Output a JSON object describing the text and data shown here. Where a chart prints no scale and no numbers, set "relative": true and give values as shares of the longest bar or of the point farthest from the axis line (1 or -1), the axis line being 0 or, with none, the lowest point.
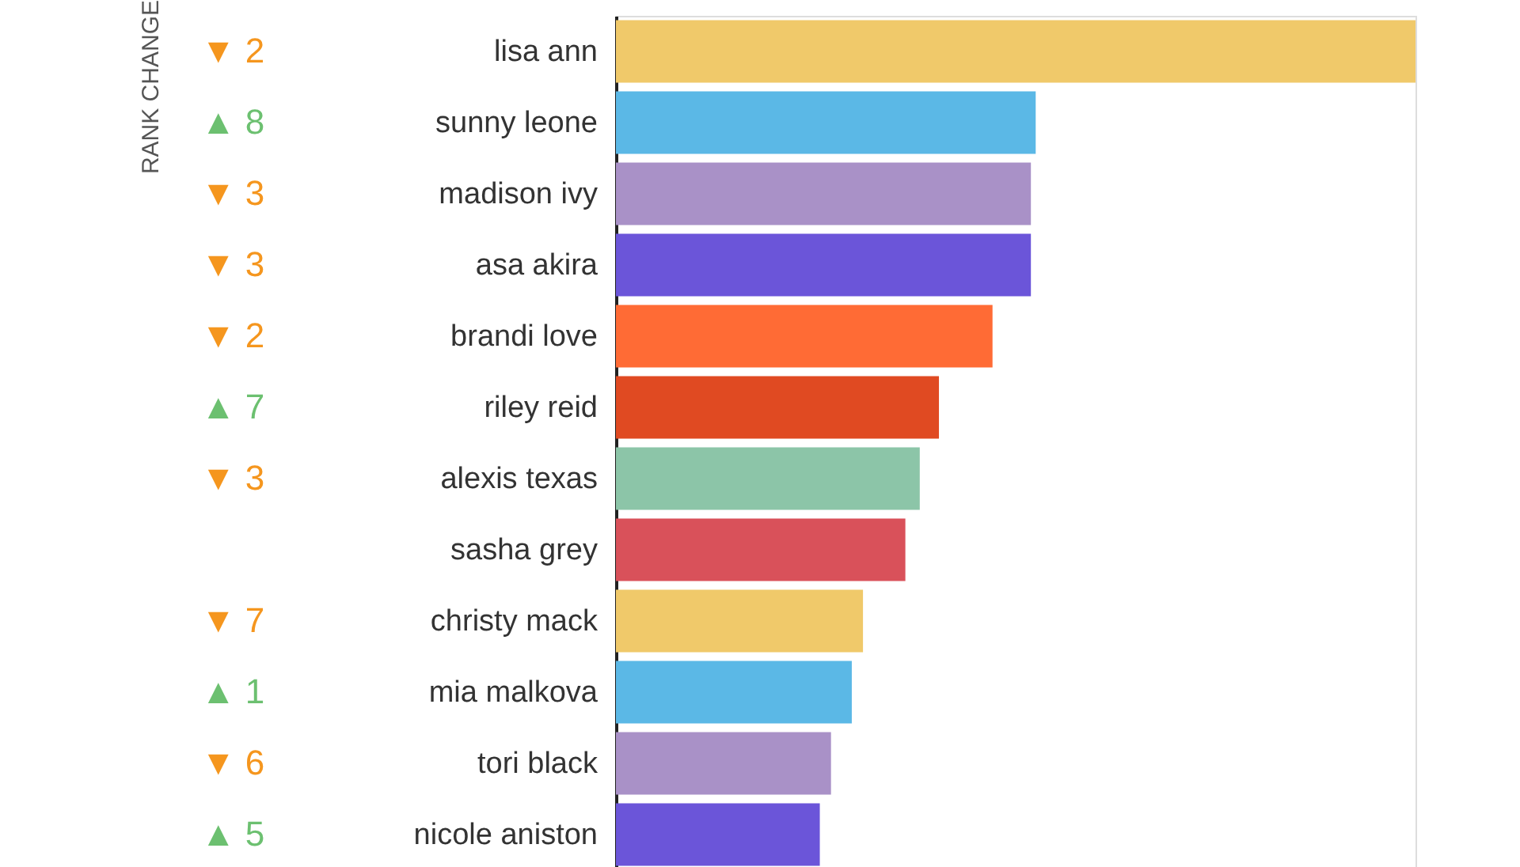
{
  "chart_data": {
    "type": "bar",
    "orientation": "horizontal",
    "relative": true,
    "annotations": [
      "RANK CHANGE"
    ],
    "categories": [
      "lisa ann",
      "sunny leone",
      "madison ivy",
      "asa akira",
      "brandi love",
      "riley reid",
      "alexis texas",
      "sasha grey",
      "christy mack",
      "mia malkova",
      "tori black",
      "nicole aniston"
    ],
    "y2_categories": [
      "▼ 2",
      "▲ 8",
      "▼ 3",
      "▼ 3",
      "▼ 2",
      "▲ 7",
      "▼ 3",
      null,
      "▼ 7",
      "▲ 1",
      "▼ 6",
      "▲ 5"
    ],
    "values": [
      1,
      0.525,
      0.519,
      0.519,
      0.471,
      0.404,
      0.38,
      0.362,
      0.309,
      0.295,
      0.269,
      0.255
    ],
    "colors": [
      "#f0c96a",
      "#5bb8e6",
      "#a991c7",
      "#6b55d9",
      "#ff6b35",
      "#e04a22",
      "#8cc5a8",
      "#d9515a",
      "#f0c96a",
      "#5bb8e6",
      "#a991c7",
      "#6b55d9"
    ]
  }
}
